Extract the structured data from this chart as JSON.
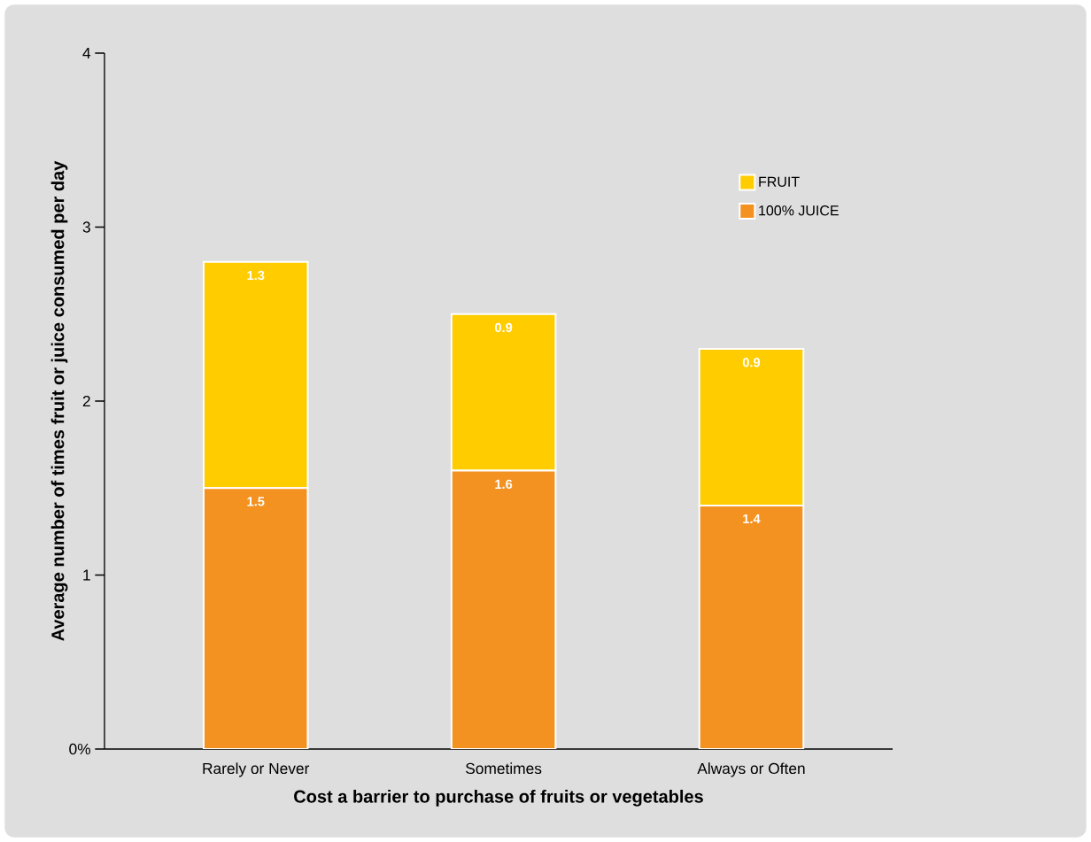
{
  "chart_data": {
    "type": "bar",
    "stacked": true,
    "xlabel": "Cost a barrier to purchase of fruits or vegetables",
    "ylabel": "Average number of times fruit or juice consumed per day",
    "categories": [
      "Rarely or Never",
      "Sometimes",
      "Always or Often"
    ],
    "series": [
      {
        "name": "100% JUICE",
        "color": "#f39220",
        "values": [
          1.5,
          1.6,
          1.4
        ]
      },
      {
        "name": "FRUIT",
        "color": "#ffcc00",
        "values": [
          1.3,
          0.9,
          0.9
        ]
      }
    ],
    "ylim": [
      0,
      4
    ],
    "yticks": [
      {
        "value": 0,
        "label": "0%"
      },
      1,
      2,
      3,
      4
    ],
    "data_labels": true,
    "legend": "top right",
    "grid": false
  }
}
